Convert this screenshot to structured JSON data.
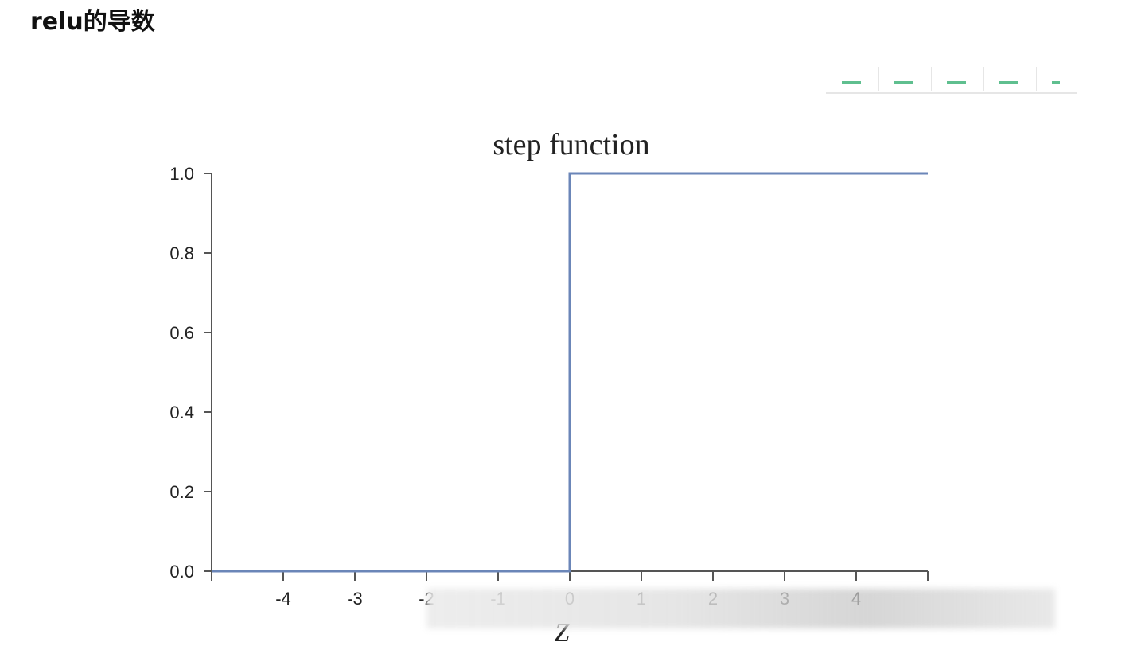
{
  "page": {
    "heading": "relu的导数"
  },
  "toolbar": {
    "icons": [
      "table-icon",
      "columns-icon",
      "grid-icon",
      "panel-icon",
      "more-icon"
    ],
    "accent": "#5fbf8f"
  },
  "chart_data": {
    "type": "line",
    "title": "step function",
    "xlabel": "Z",
    "ylabel": "",
    "xlim": [
      -5,
      5
    ],
    "ylim": [
      0,
      1
    ],
    "xticks": [
      -4,
      -3,
      -2,
      -1,
      0,
      1,
      2,
      3,
      4
    ],
    "xtick_labels": [
      "-4",
      "-3",
      "-2",
      "-1",
      "0",
      "1",
      "2",
      "3",
      "4"
    ],
    "yticks": [
      0.0,
      0.2,
      0.4,
      0.6,
      0.8,
      1.0
    ],
    "ytick_labels": [
      "0.0",
      "0.2",
      "0.4",
      "0.6",
      "0.8",
      "1.0"
    ],
    "grid": false,
    "series": [
      {
        "x": [
          -5,
          0,
          0,
          5
        ],
        "y": [
          0,
          0,
          1,
          1
        ],
        "color": "#6b86b8"
      }
    ]
  }
}
